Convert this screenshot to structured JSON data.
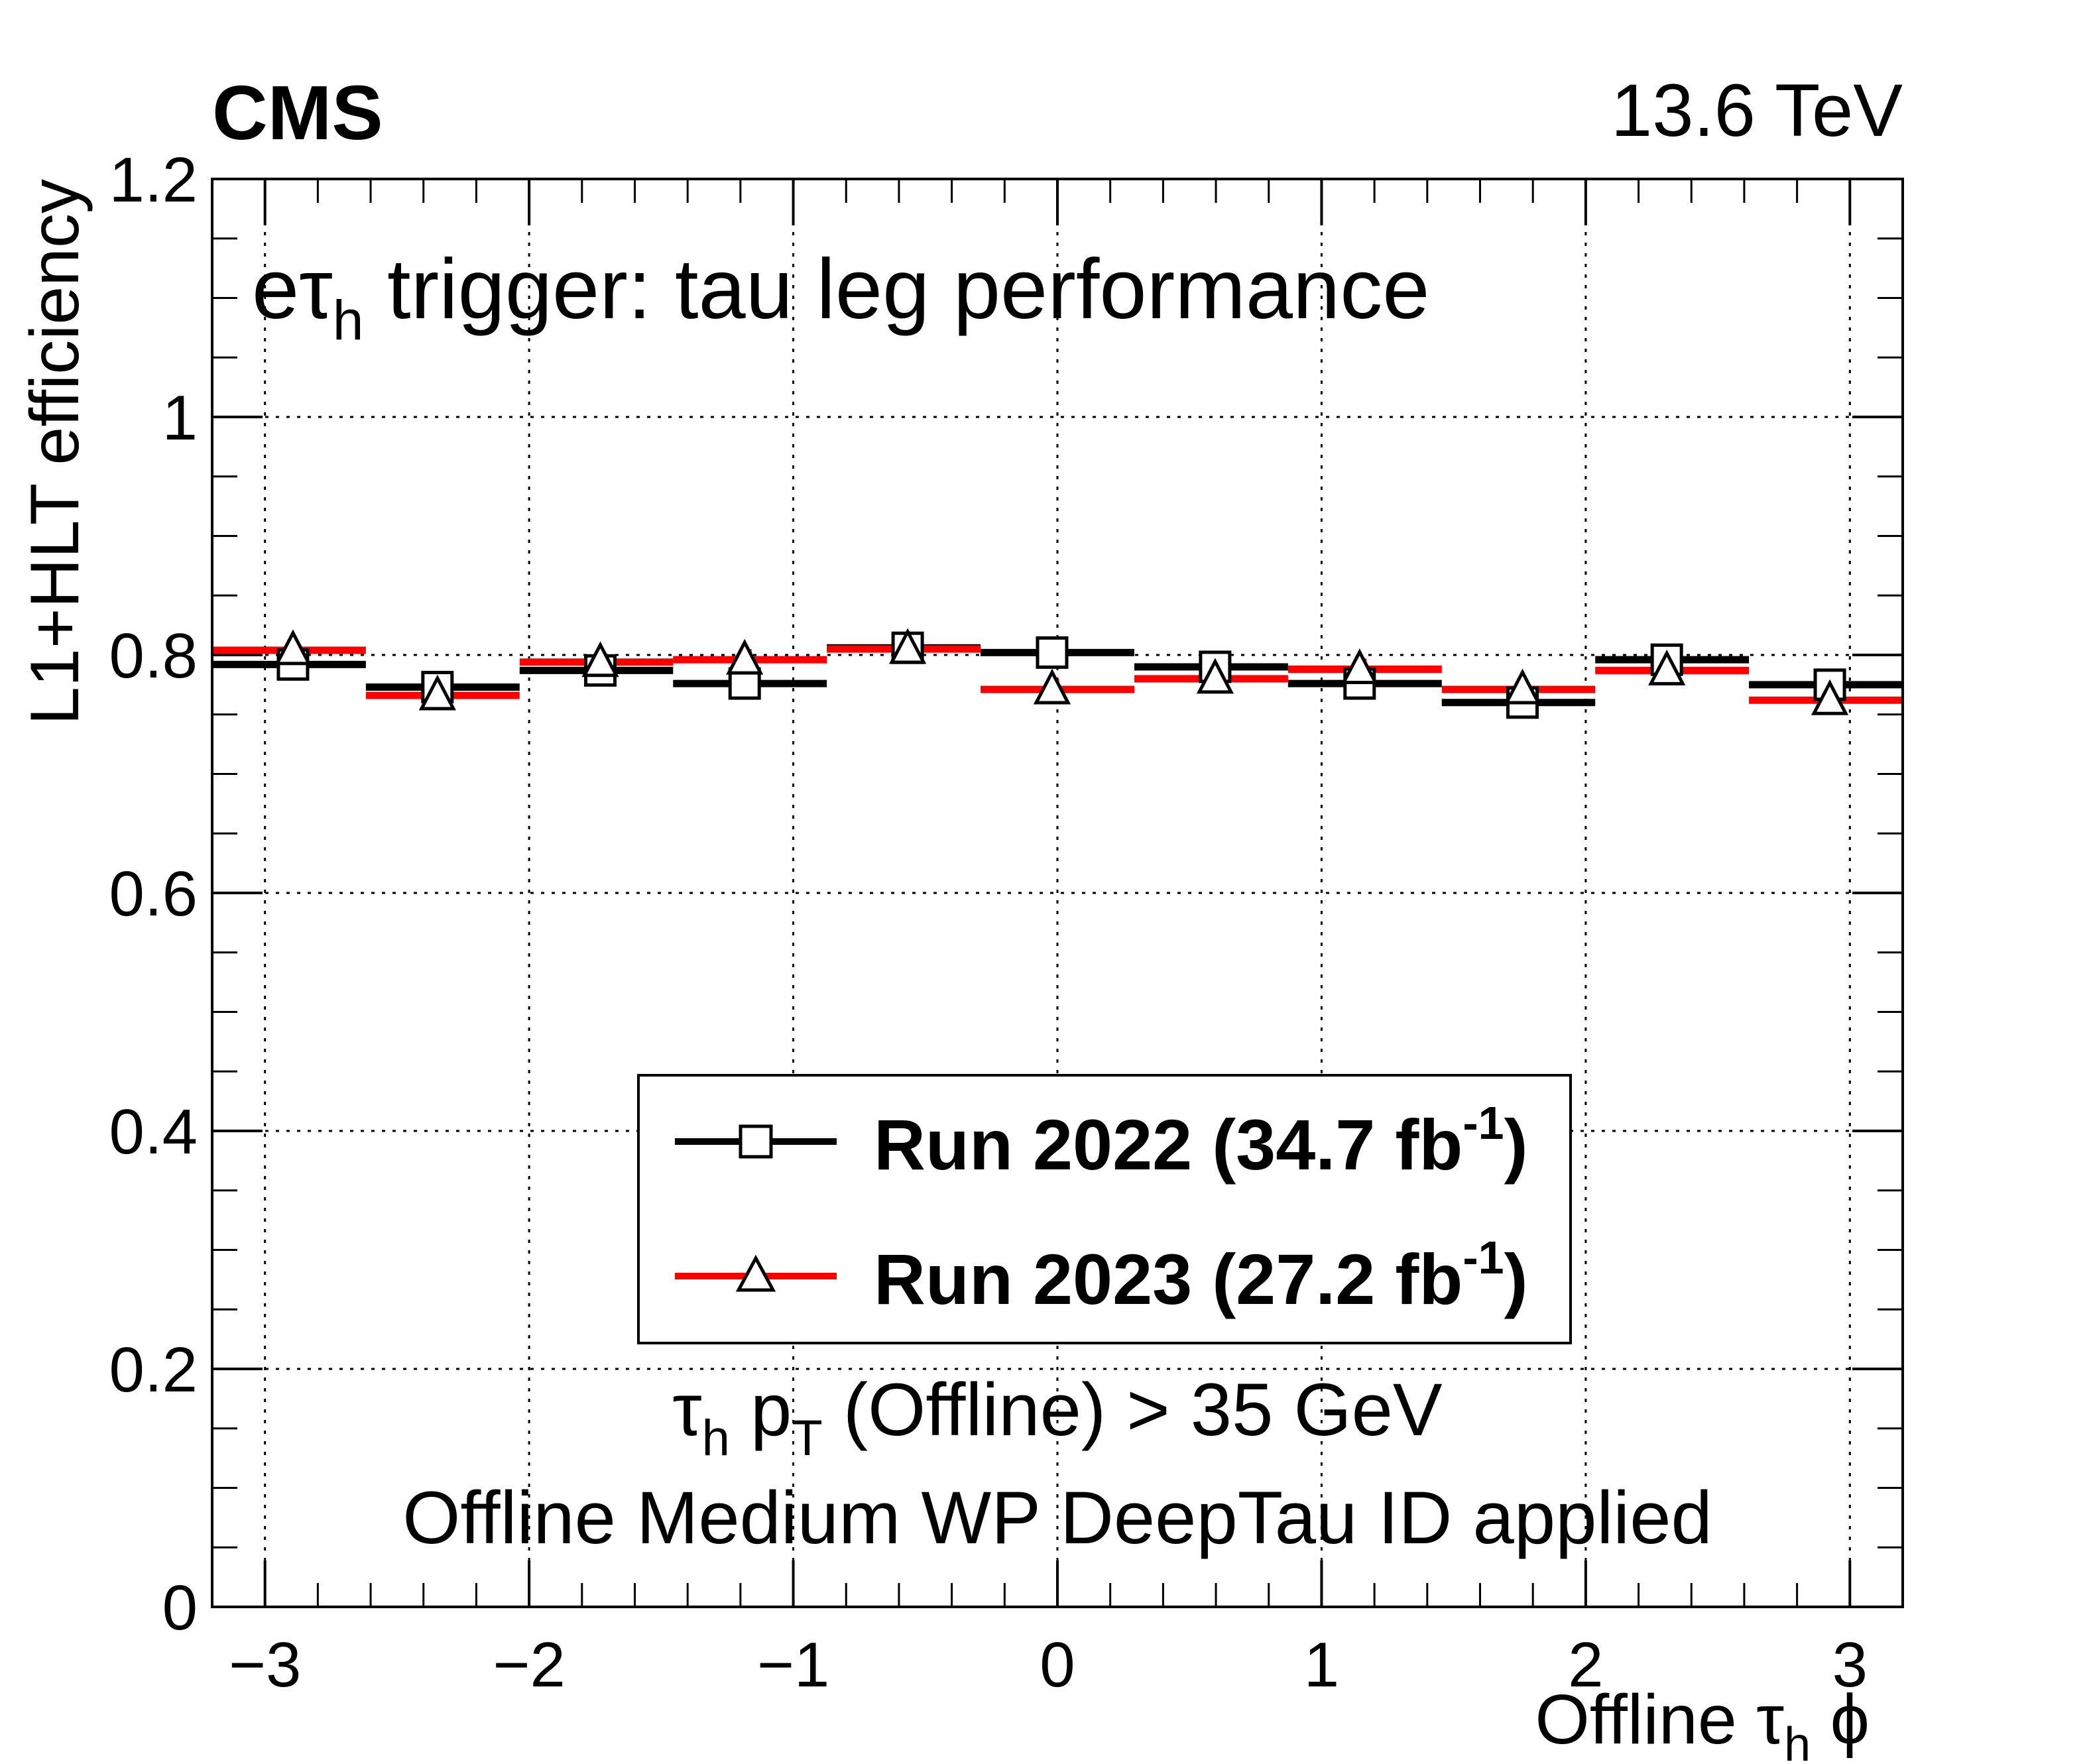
{
  "chart_data": {
    "type": "line",
    "experiment_label": "CMS",
    "energy_label": "13.6 TeV",
    "title": {
      "main": "e",
      "tau": "τ",
      "sub": "h",
      "rest": " trigger: tau leg performance"
    },
    "ylabel": "L1+HLT efficiency",
    "xlabel": {
      "main": "Offline ",
      "tau": "τ",
      "sub": "h",
      "rest": " ϕ"
    },
    "xlim": [
      -3.2,
      3.2
    ],
    "ylim": [
      0,
      1.2
    ],
    "x_ticks": [
      -3,
      -2,
      -1,
      0,
      1,
      2,
      3
    ],
    "x_tick_labels": [
      "−3",
      "−2",
      "−1",
      "0",
      "1",
      "2",
      "3"
    ],
    "y_ticks": [
      0,
      0.2,
      0.4,
      0.6,
      0.8,
      1.0,
      1.2
    ],
    "y_tick_labels": [
      "0",
      "0.2",
      "0.4",
      "0.6",
      "0.8",
      "1",
      "1.2"
    ],
    "grid": true,
    "bin_edges": [
      -3.2,
      -2.618,
      -2.036,
      -1.455,
      -0.873,
      -0.291,
      0.291,
      0.873,
      1.455,
      2.036,
      2.618,
      3.2
    ],
    "series": [
      {
        "name": "Run 2022 (34.7 fb",
        "sup": "-1",
        "close": ")",
        "color": "#000000",
        "marker": "open-square",
        "values": [
          0.792,
          0.773,
          0.787,
          0.776,
          0.806,
          0.802,
          0.79,
          0.776,
          0.76,
          0.796,
          0.775
        ]
      },
      {
        "name": "Run 2023 (27.2 fb",
        "sup": "-1",
        "close": ")",
        "color": "#ff0000",
        "marker": "open-triangle",
        "values": [
          0.804,
          0.766,
          0.794,
          0.796,
          0.805,
          0.771,
          0.78,
          0.788,
          0.771,
          0.787,
          0.762
        ]
      }
    ],
    "annotations": [
      {
        "tau": "τ",
        "sub1": "h",
        "mid": " p",
        "sub2": "T",
        "rest": " (Offline) > 35 GeV"
      },
      {
        "text": "Offline Medium WP DeepTau ID applied"
      }
    ],
    "legend_position": "lower-center"
  }
}
